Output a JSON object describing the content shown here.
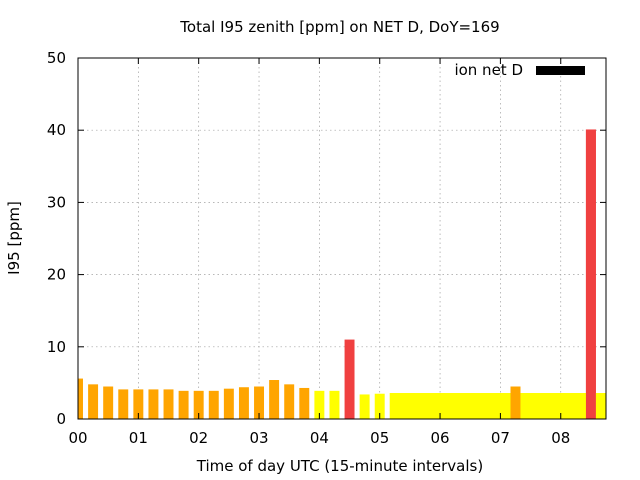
{
  "chart_data": {
    "type": "bar",
    "title": "Total I95 zenith [ppm] on NET D, DoY=169",
    "xlabel": "Time of day UTC (15-minute intervals)",
    "ylabel": "I95 [ppm]",
    "xlim": [
      0,
      8.75
    ],
    "ylim": [
      0,
      50
    ],
    "xticks": [
      0,
      1,
      2,
      3,
      4,
      5,
      6,
      7,
      8
    ],
    "xtick_labels": [
      "00",
      "01",
      "02",
      "03",
      "04",
      "05",
      "06",
      "07",
      "08"
    ],
    "yticks": [
      0,
      10,
      20,
      30,
      40,
      50
    ],
    "ytick_labels": [
      "0",
      "10",
      "20",
      "30",
      "40",
      "50"
    ],
    "grid": true,
    "legend": {
      "label": "ion net D",
      "color": "#000000",
      "position": "top-right"
    },
    "bars": [
      {
        "x": 0.0,
        "value": 5.6,
        "color": "#ffa500"
      },
      {
        "x": 0.25,
        "value": 4.8,
        "color": "#ffa500"
      },
      {
        "x": 0.5,
        "value": 4.5,
        "color": "#ffa500"
      },
      {
        "x": 0.75,
        "value": 4.1,
        "color": "#ffa500"
      },
      {
        "x": 1.0,
        "value": 4.1,
        "color": "#ffa500"
      },
      {
        "x": 1.25,
        "value": 4.1,
        "color": "#ffa500"
      },
      {
        "x": 1.5,
        "value": 4.1,
        "color": "#ffa500"
      },
      {
        "x": 1.75,
        "value": 3.9,
        "color": "#ffa500"
      },
      {
        "x": 2.0,
        "value": 3.9,
        "color": "#ffa500"
      },
      {
        "x": 2.25,
        "value": 3.9,
        "color": "#ffa500"
      },
      {
        "x": 2.5,
        "value": 4.2,
        "color": "#ffa500"
      },
      {
        "x": 2.75,
        "value": 4.4,
        "color": "#ffa500"
      },
      {
        "x": 3.0,
        "value": 4.5,
        "color": "#ffa500"
      },
      {
        "x": 3.25,
        "value": 5.4,
        "color": "#ffa500"
      },
      {
        "x": 3.5,
        "value": 4.8,
        "color": "#ffa500"
      },
      {
        "x": 3.75,
        "value": 4.3,
        "color": "#ffa500"
      },
      {
        "x": 4.0,
        "value": 3.9,
        "color": "#ffff00"
      },
      {
        "x": 4.25,
        "value": 3.9,
        "color": "#ffff00"
      },
      {
        "x": 4.5,
        "value": 11.0,
        "color": "#f04040"
      },
      {
        "x": 4.75,
        "value": 3.4,
        "color": "#ffff00"
      },
      {
        "x": 5.0,
        "value": 3.5,
        "color": "#ffff00"
      },
      {
        "x": 5.25,
        "value": 3.6,
        "color": "#ffff00"
      },
      {
        "x": 5.5,
        "value": 3.6,
        "color": "#ffff00"
      },
      {
        "x": 5.75,
        "value": 3.6,
        "color": "#ffff00"
      },
      {
        "x": 6.0,
        "value": 3.6,
        "color": "#ffff00"
      },
      {
        "x": 6.25,
        "value": 3.6,
        "color": "#ffff00"
      },
      {
        "x": 6.5,
        "value": 3.6,
        "color": "#ffff00"
      },
      {
        "x": 6.75,
        "value": 3.6,
        "color": "#ffff00"
      },
      {
        "x": 7.0,
        "value": 3.6,
        "color": "#ffff00"
      },
      {
        "x": 7.25,
        "value": 4.5,
        "color": "#ffa500"
      },
      {
        "x": 7.5,
        "value": 3.6,
        "color": "#ffff00"
      },
      {
        "x": 7.75,
        "value": 3.6,
        "color": "#ffff00"
      },
      {
        "x": 8.0,
        "value": 3.6,
        "color": "#ffff00"
      },
      {
        "x": 8.25,
        "value": 3.6,
        "color": "#ffff00"
      },
      {
        "x": 8.5,
        "value": 40.1,
        "color": "#f04040"
      },
      {
        "x": 8.75,
        "value": 3.6,
        "color": "#ffff00"
      }
    ]
  }
}
